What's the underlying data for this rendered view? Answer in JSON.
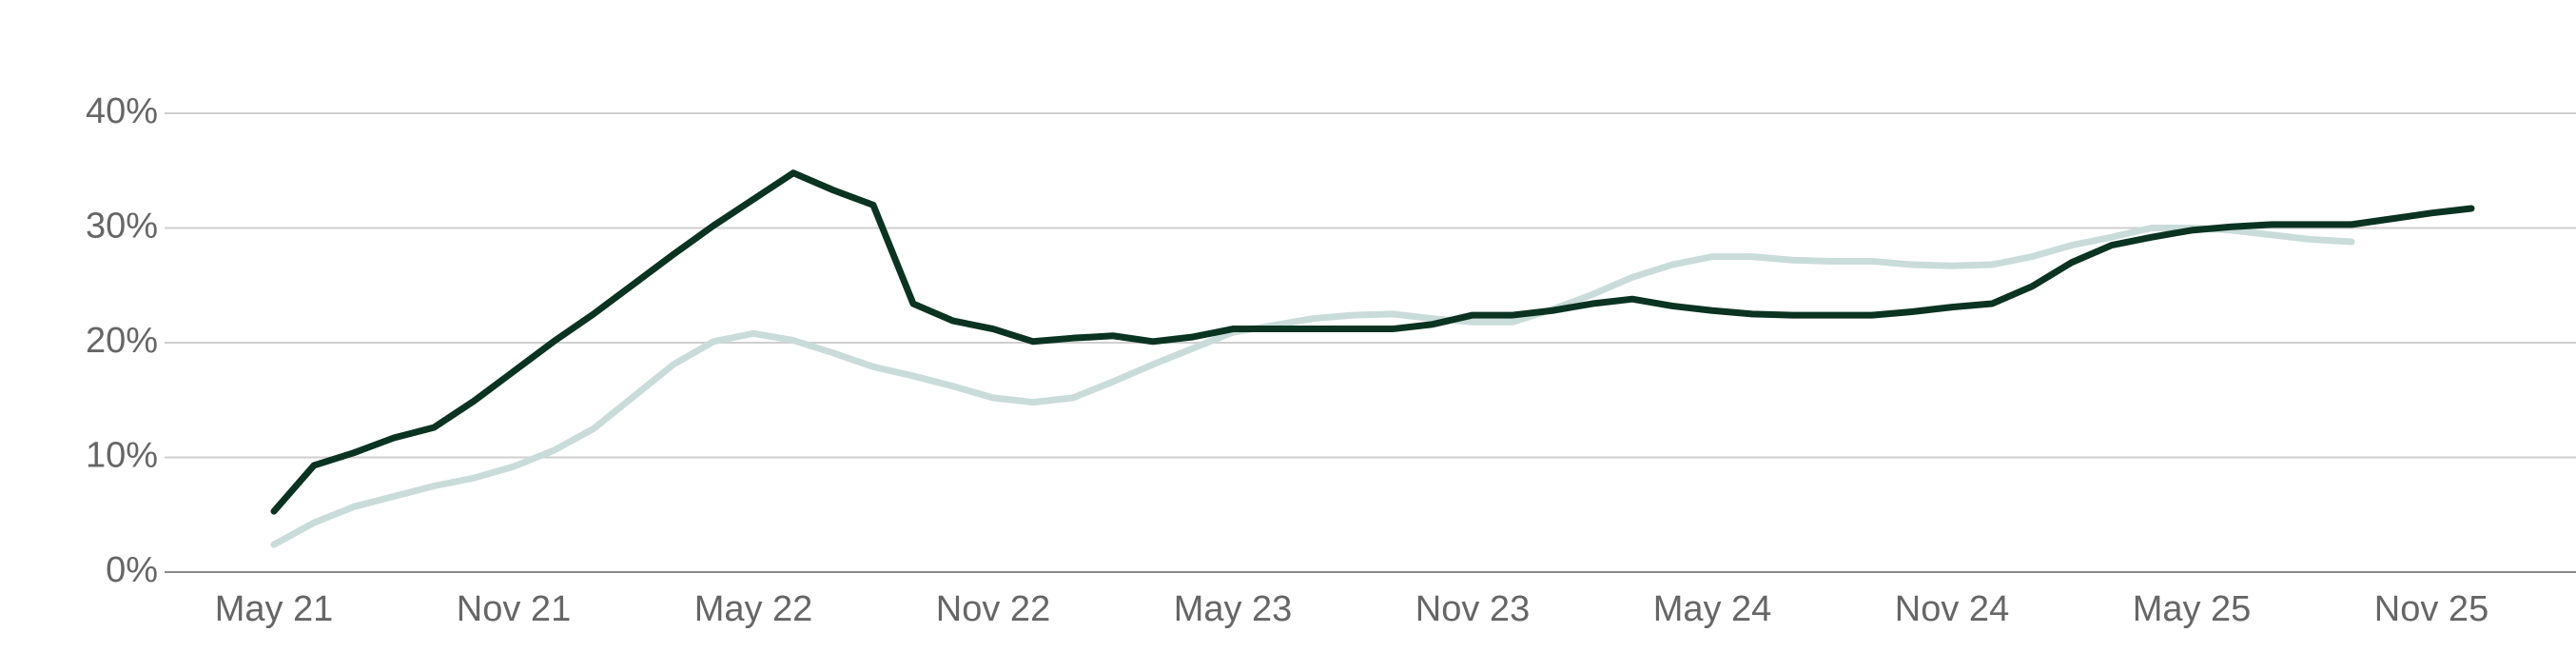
{
  "chart_data": {
    "type": "line",
    "categories": [
      "May 21",
      null,
      null,
      null,
      null,
      null,
      "Nov 21",
      null,
      null,
      null,
      null,
      null,
      "May 22",
      null,
      null,
      null,
      null,
      null,
      "Nov 22",
      null,
      null,
      null,
      null,
      null,
      "May 23",
      null,
      null,
      null,
      null,
      null,
      "Nov 23",
      null,
      null,
      null,
      null,
      null,
      "May 24",
      null,
      null,
      null,
      null,
      null,
      "Nov 24",
      null,
      null,
      null,
      null,
      null,
      "May 25",
      null,
      null,
      null,
      null,
      null,
      "Nov 25",
      null
    ],
    "series": [
      {
        "color": "#c9dcd9",
        "values": [
          2.4,
          4.3,
          5.7,
          6.6,
          7.5,
          8.2,
          9.2,
          10.6,
          12.5,
          15.3,
          18.1,
          20.1,
          20.8,
          20.2,
          19.1,
          17.9,
          17.1,
          16.2,
          15.2,
          14.8,
          15.2,
          16.6,
          18.1,
          19.5,
          20.9,
          21.5,
          22.1,
          22.4,
          22.5,
          22.1,
          21.8,
          21.8,
          22.9,
          24.2,
          25.7,
          26.8,
          27.5,
          27.5,
          27.2,
          27.1,
          27.1,
          26.8,
          26.7,
          26.8,
          27.5,
          28.5,
          29.2,
          30.0,
          30.0,
          29.8,
          29.4,
          29.0,
          28.8,
          null,
          null,
          null
        ]
      },
      {
        "color": "#0b3322",
        "values": [
          5.3,
          9.3,
          10.4,
          11.7,
          12.6,
          14.9,
          17.5,
          20.1,
          22.5,
          25.1,
          27.7,
          30.2,
          32.5,
          34.8,
          33.3,
          32.0,
          23.4,
          21.9,
          21.2,
          20.1,
          20.4,
          20.6,
          20.1,
          20.5,
          21.2,
          21.2,
          21.2,
          21.2,
          21.2,
          21.6,
          22.4,
          22.4,
          22.8,
          23.4,
          23.8,
          23.2,
          22.8,
          22.5,
          22.4,
          22.4,
          22.4,
          22.7,
          23.1,
          23.4,
          24.9,
          27.0,
          28.5,
          29.2,
          29.8,
          30.1,
          30.3,
          30.3,
          30.3,
          30.8,
          31.3,
          31.7
        ]
      }
    ],
    "ylim": [
      0,
      40
    ],
    "yticks": [
      {
        "value": 0,
        "label": "0%"
      },
      {
        "value": 10,
        "label": "10%"
      },
      {
        "value": 20,
        "label": "20%"
      },
      {
        "value": 30,
        "label": "30%"
      },
      {
        "value": 40,
        "label": "40%"
      }
    ],
    "grid": true
  }
}
